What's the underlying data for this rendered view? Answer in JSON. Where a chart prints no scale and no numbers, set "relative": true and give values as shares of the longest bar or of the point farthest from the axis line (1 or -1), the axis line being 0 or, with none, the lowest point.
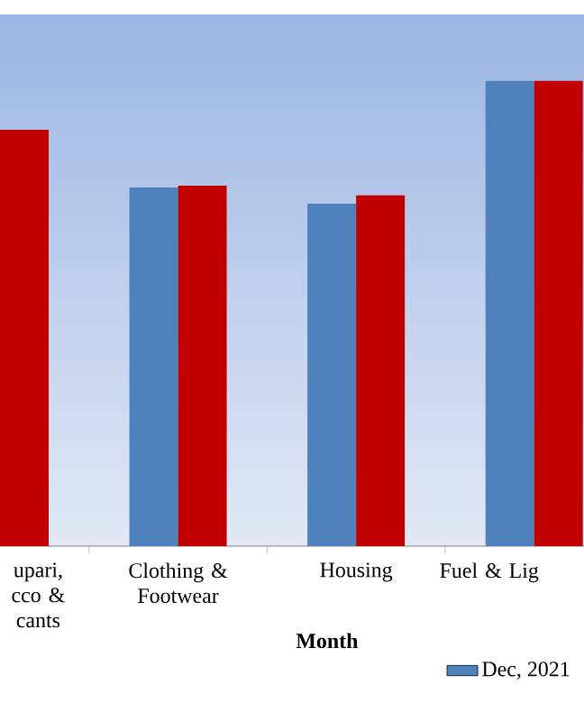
{
  "chart_data": {
    "type": "bar",
    "relative": true,
    "categories": [
      "upari, cco & cants",
      "Clothing & Footwear",
      "Housing",
      "Fuel & Lig"
    ],
    "xlabel": "Month",
    "legend": "bottom",
    "series": [
      {
        "name": "Dec, 2021",
        "color": "#4f81bd",
        "values": [
          null,
          0.771,
          0.736,
          1
        ]
      },
      {
        "color": "#c00000",
        "values": [
          0.895,
          0.775,
          0.754,
          1
        ]
      }
    ]
  }
}
